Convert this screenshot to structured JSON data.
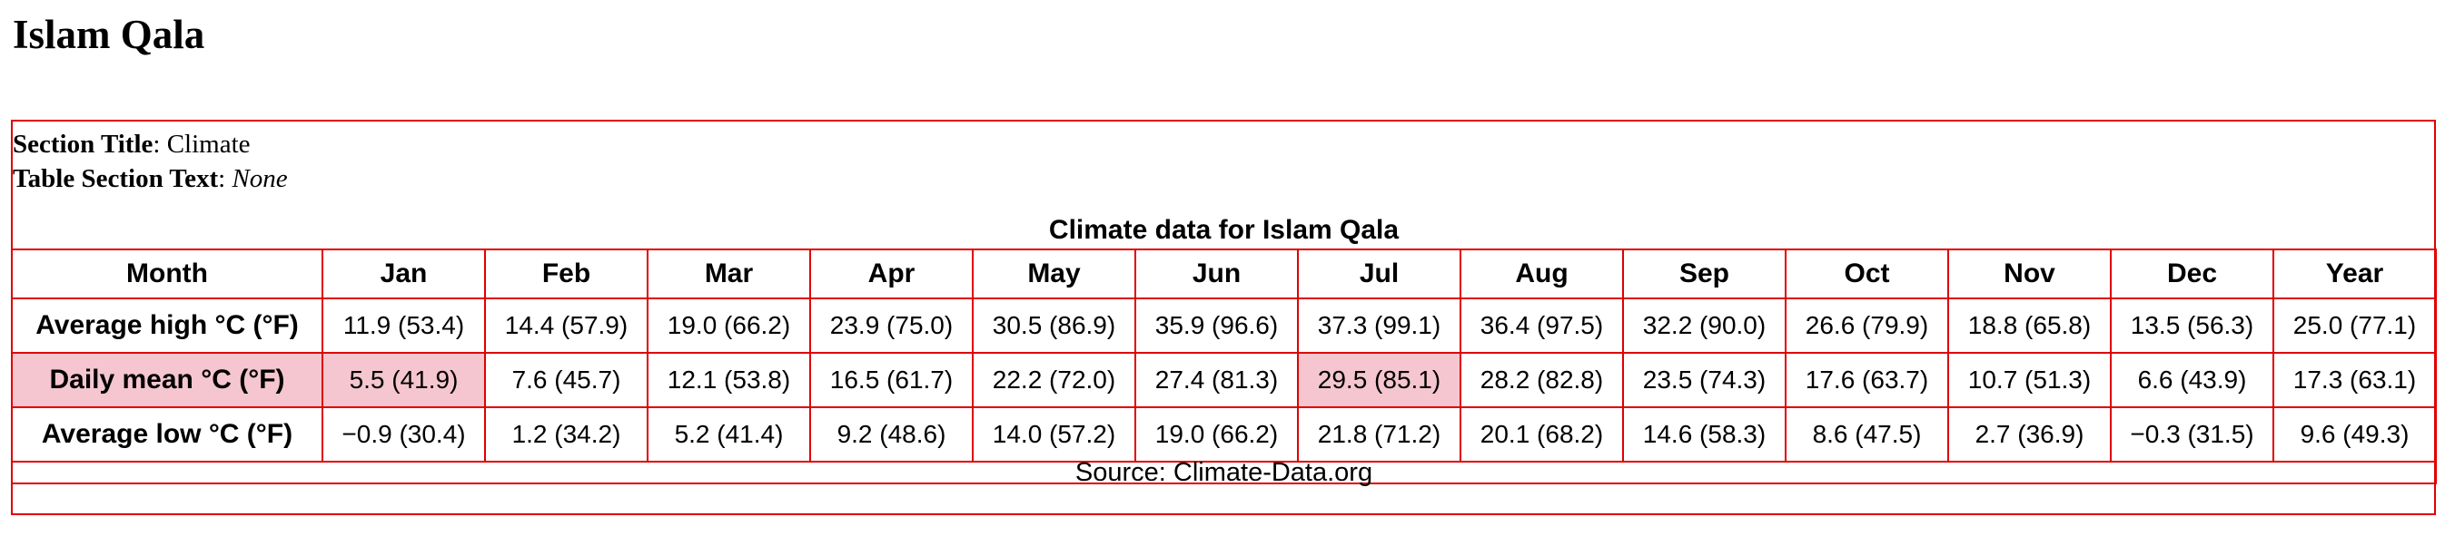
{
  "page": {
    "title": "Islam Qala"
  },
  "meta": {
    "section_title_label": "Section Title",
    "section_title_value": "Climate",
    "table_section_text_label": "Table Section Text",
    "table_section_text_value": "None"
  },
  "table": {
    "caption": "Climate data for Islam Qala",
    "header": [
      "Month",
      "Jan",
      "Feb",
      "Mar",
      "Apr",
      "May",
      "Jun",
      "Jul",
      "Aug",
      "Sep",
      "Oct",
      "Nov",
      "Dec",
      "Year"
    ],
    "rows": [
      {
        "label": "Average high °C (°F)",
        "cells": [
          "11.9 (53.4)",
          "14.4 (57.9)",
          "19.0 (66.2)",
          "23.9 (75.0)",
          "30.5 (86.9)",
          "35.9 (96.6)",
          "37.3 (99.1)",
          "36.4 (97.5)",
          "32.2 (90.0)",
          "26.6 (79.9)",
          "18.8 (65.8)",
          "13.5 (56.3)",
          "25.0 (77.1)"
        ]
      },
      {
        "label": "Daily mean °C (°F)",
        "cells": [
          "5.5 (41.9)",
          "7.6 (45.7)",
          "12.1 (53.8)",
          "16.5 (61.7)",
          "22.2 (72.0)",
          "27.4 (81.3)",
          "29.5 (85.1)",
          "28.2 (82.8)",
          "23.5 (74.3)",
          "17.6 (63.7)",
          "10.7 (51.3)",
          "6.6 (43.9)",
          "17.3 (63.1)"
        ]
      },
      {
        "label": "Average low °C (°F)",
        "cells": [
          "−0.9 (30.4)",
          "1.2 (34.2)",
          "5.2 (41.4)",
          "9.2 (48.6)",
          "14.0 (57.2)",
          "19.0 (66.2)",
          "21.8 (71.2)",
          "20.1 (68.2)",
          "14.6 (58.3)",
          "8.6 (47.5)",
          "2.7 (36.9)",
          "−0.3 (31.5)",
          "9.6 (49.3)"
        ]
      }
    ],
    "source": "Source: Climate-Data.org"
  },
  "colors": {
    "border": "#e00000",
    "highlight": "#f5c6d0"
  }
}
